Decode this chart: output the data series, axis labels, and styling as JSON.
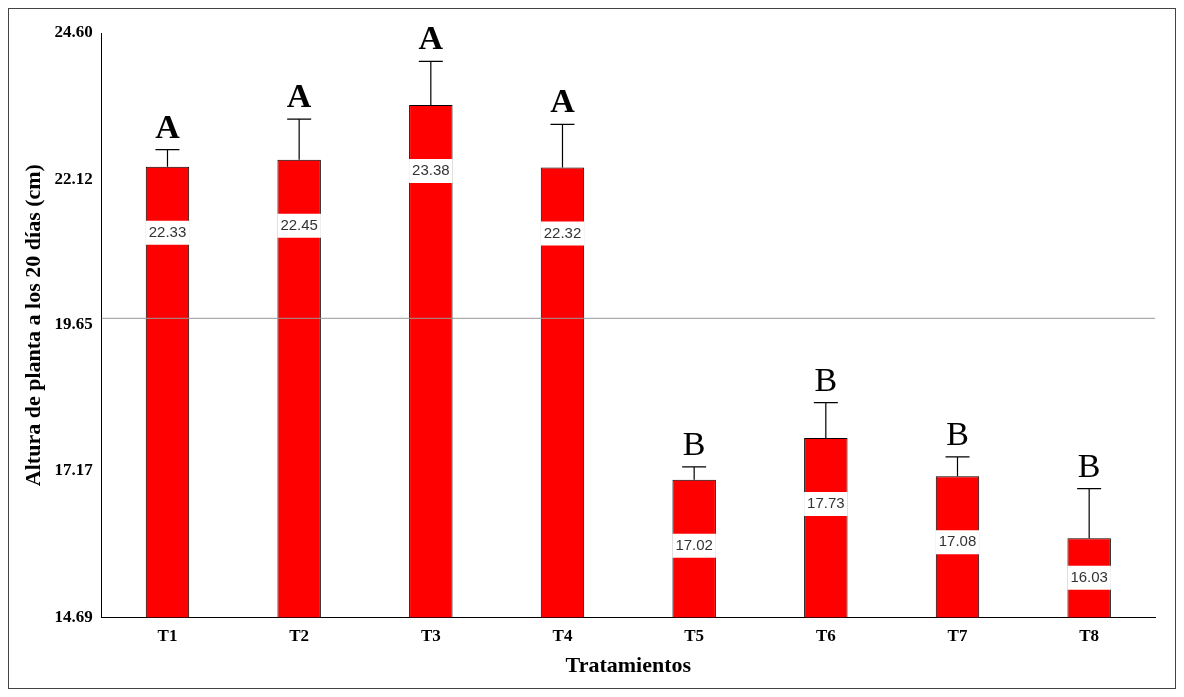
{
  "chart_data": {
    "type": "bar",
    "xlabel": "Tratamientos",
    "ylabel": "Altura de planta a los 20 días (cm)",
    "categories": [
      "T1",
      "T2",
      "T3",
      "T4",
      "T5",
      "T6",
      "T7",
      "T8"
    ],
    "values": [
      22.33,
      22.45,
      23.38,
      22.32,
      17.02,
      17.73,
      17.08,
      16.03
    ],
    "color": "#ff0000",
    "errors": [
      [
        22.33,
        22.62
      ],
      [
        22.45,
        23.14
      ],
      [
        23.38,
        24.12
      ],
      [
        22.32,
        23.05
      ],
      [
        17.02,
        17.24
      ],
      [
        17.73,
        18.33
      ],
      [
        17.08,
        17.41
      ],
      [
        16.03,
        16.87
      ]
    ],
    "data_labels": true,
    "ylim": [
      14.69,
      24.6
    ],
    "yticks": [
      14.69,
      {
        "value": 17.17,
        "label": "17.17"
      },
      {
        "value": 19.65,
        "label": "19.65"
      },
      22.12,
      {
        "value": 24.6,
        "label": "24.60"
      }
    ],
    "ref_lines": [
      {
        "axis": "y",
        "value": 19.76,
        "color": "#999999"
      }
    ],
    "annotations": [
      {
        "text": "A",
        "x": "T1",
        "y": 22.62
      },
      {
        "text": "A",
        "x": "T2",
        "y": 23.14
      },
      {
        "text": "A",
        "x": "T3",
        "y": 24.12
      },
      {
        "text": "A",
        "x": "T4",
        "y": 23.05
      },
      {
        "text": "B",
        "x": "T5",
        "y": 17.24
      },
      {
        "text": "B",
        "x": "T6",
        "y": 18.33
      },
      {
        "text": "B",
        "x": "T7",
        "y": 17.41
      },
      {
        "text": "B",
        "x": "T8",
        "y": 16.87
      }
    ],
    "grid": false,
    "legend": false
  }
}
